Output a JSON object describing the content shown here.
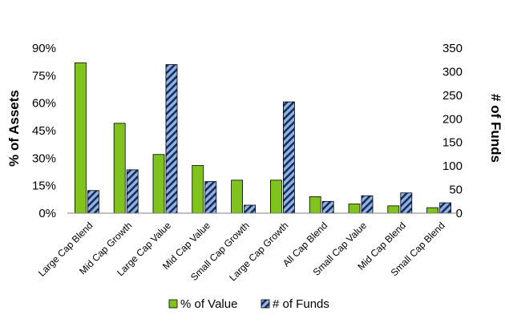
{
  "chart_data": {
    "type": "bar",
    "categories": [
      "Large Cap Blend",
      "Mid Cap Growth",
      "Large Cap Value",
      "Mid Cap Value",
      "Small Cap Growth",
      "Large Cap Growth",
      "All Cap Blend",
      "Small Cap Value",
      "Mid Cap Blend",
      "Small Cap Blend"
    ],
    "series": [
      {
        "name": "% of Value",
        "axis": "left",
        "values": [
          82,
          49,
          32,
          26,
          18,
          18,
          9,
          5,
          4,
          3
        ],
        "color": "#80c31c"
      },
      {
        "name": "# of Funds",
        "axis": "right",
        "values": [
          48,
          92,
          315,
          67,
          17,
          236,
          25,
          37,
          43,
          22
        ],
        "color": "#8fb4e3",
        "pattern": "diagonal-stripes"
      }
    ],
    "left_axis": {
      "label": "% of Assets",
      "min": 0,
      "max": 90,
      "ticks": [
        "0%",
        "15%",
        "30%",
        "45%",
        "60%",
        "75%",
        "90%"
      ]
    },
    "right_axis": {
      "label": "# of Funds",
      "min": 0,
      "max": 350,
      "ticks": [
        "0",
        "50",
        "100",
        "150",
        "200",
        "250",
        "300",
        "350"
      ]
    },
    "grid": false,
    "legend_position": "bottom"
  }
}
